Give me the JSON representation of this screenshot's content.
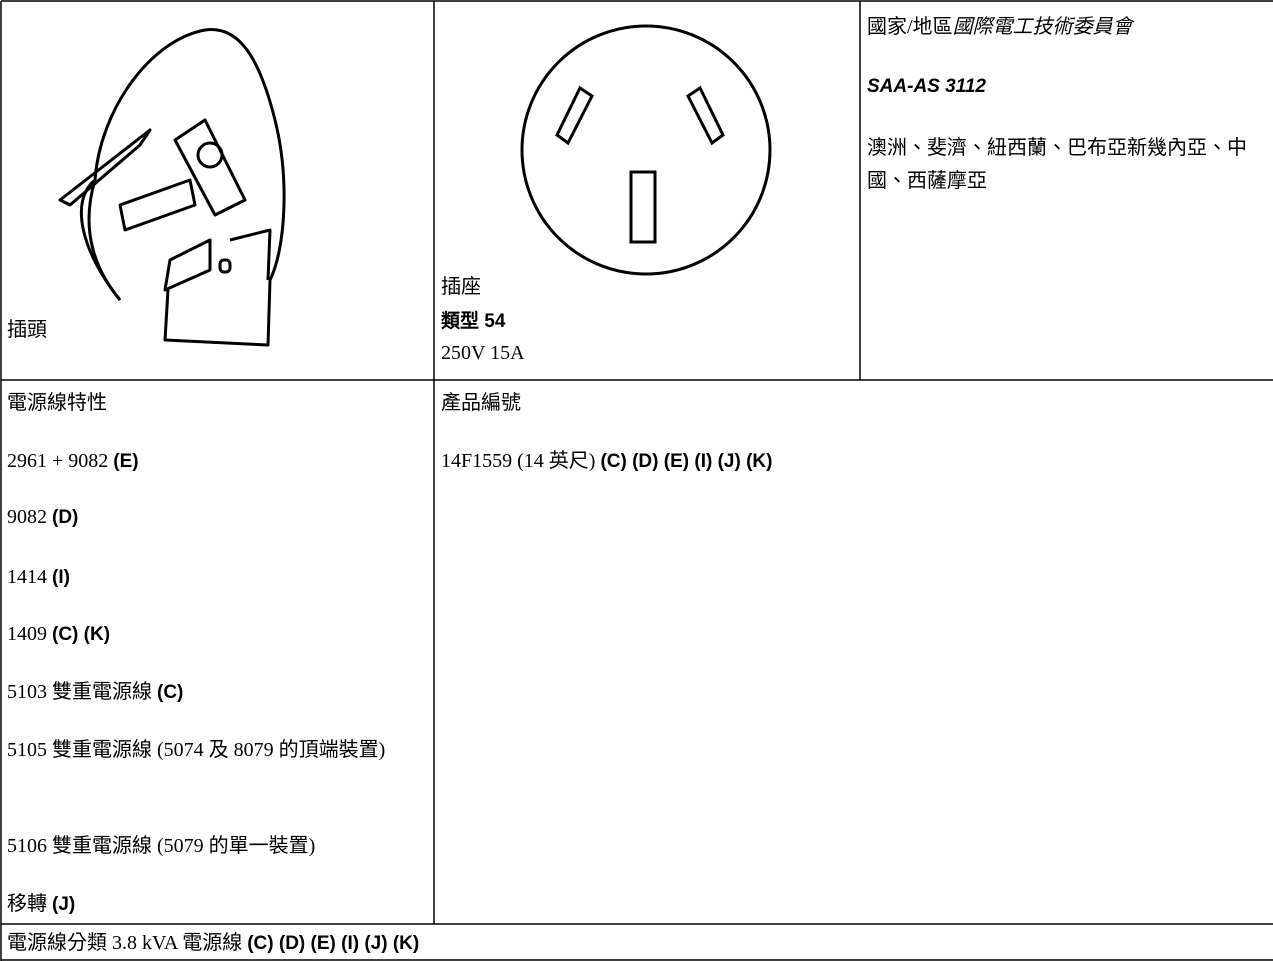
{
  "plug_cell": {
    "label": "插頭"
  },
  "socket_cell": {
    "label": "插座",
    "type": "類型 54",
    "rating": "250V 15A"
  },
  "standard_cell": {
    "region_label": "國家/地區",
    "organization": "國際電工技術委員會",
    "standard": "SAA-AS 3112",
    "countries": "澳洲、斐濟、紐西蘭、巴布亞新幾內亞、中國、西薩摩亞"
  },
  "characteristics": {
    "heading": "電源線特性",
    "items": [
      {
        "text": "2961 + 9082",
        "code": "(E)"
      },
      {
        "text": "9082",
        "code": "(D)"
      },
      {
        "text": "1414",
        "code": "(I)"
      },
      {
        "text": "1409",
        "code": "(C) (K)"
      },
      {
        "text": "5103 雙重電源線",
        "code": "(C)"
      },
      {
        "text": "5105 雙重電源線 (5074 及 8079 的頂端裝置)"
      },
      {
        "text": "5106 雙重電源線 (5079 的單一裝置)"
      },
      {
        "text": "移轉",
        "code": "(J)"
      }
    ]
  },
  "part_numbers": {
    "heading": "產品編號",
    "items": [
      {
        "text": "14F1559 (14 英尺)",
        "code": "(C) (D) (E) (I) (J) (K)"
      }
    ]
  },
  "classification": {
    "text": "電源線分類 3.8 kVA 電源線",
    "code": "(C) (D) (E) (I) (J) (K)"
  }
}
